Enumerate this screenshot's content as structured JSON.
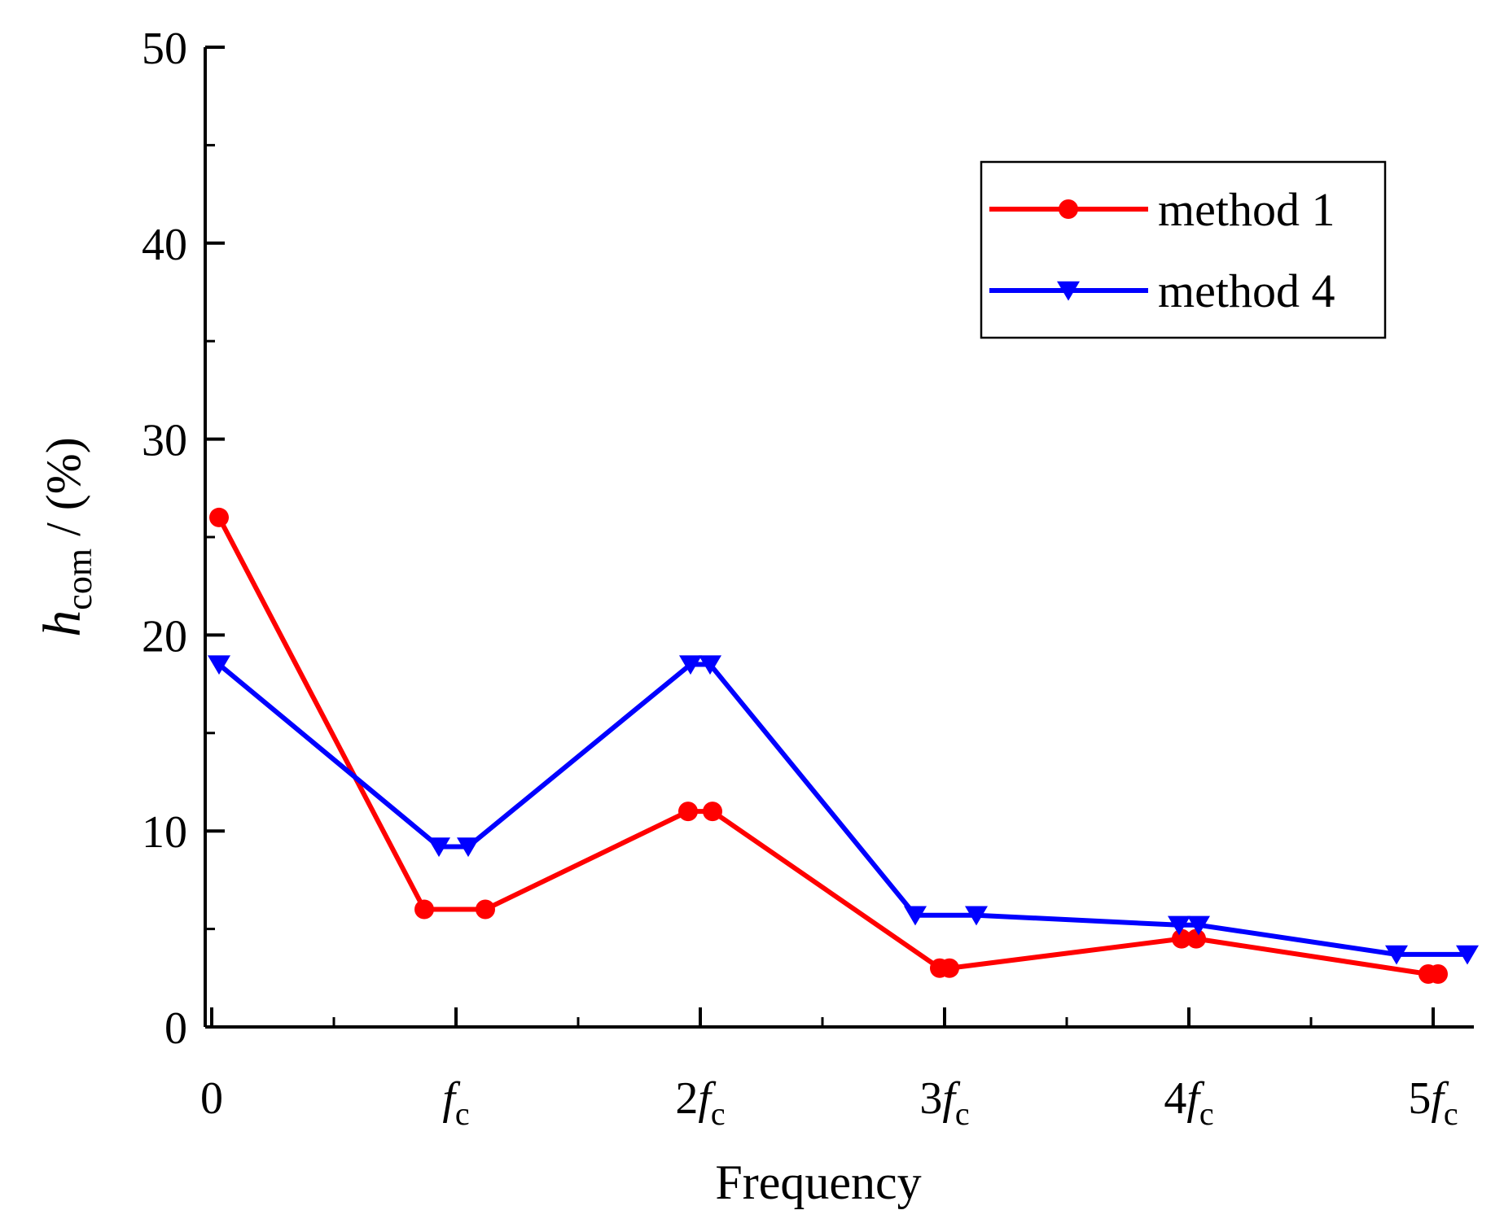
{
  "chart_data": {
    "type": "line",
    "title": "",
    "xlabel": "Frequency",
    "ylabel": {
      "main": "h",
      "sub": "com",
      "suffix": " / (%)"
    },
    "xlim": [
      0,
      5.2
    ],
    "ylim": [
      0,
      50
    ],
    "yticks": [
      0,
      10,
      20,
      30,
      40,
      50
    ],
    "xticks": [
      {
        "value": 0,
        "coef": "0",
        "f": "",
        "sub": ""
      },
      {
        "value": 1,
        "coef": "",
        "f": "f",
        "sub": "c"
      },
      {
        "value": 2,
        "coef": "2",
        "f": "f",
        "sub": "c"
      },
      {
        "value": 3,
        "coef": "3",
        "f": "f",
        "sub": "c"
      },
      {
        "value": 4,
        "coef": "4",
        "f": "f",
        "sub": "c"
      },
      {
        "value": 5,
        "coef": "5",
        "f": "f",
        "sub": "c"
      }
    ],
    "legend": {
      "position": "top-right"
    },
    "series": [
      {
        "name": "method 1",
        "color": "#ff0000",
        "marker": "circle",
        "x": [
          0.03,
          0.87,
          1.12,
          1.95,
          2.05,
          2.98,
          3.02,
          3.97,
          4.03,
          4.98,
          5.02
        ],
        "y": [
          26.0,
          6.0,
          6.0,
          11.0,
          11.0,
          3.0,
          3.0,
          4.5,
          4.5,
          2.7,
          2.7
        ]
      },
      {
        "name": "method 4",
        "color": "#0000ff",
        "marker": "triangle-down",
        "x": [
          0.03,
          0.93,
          1.05,
          1.96,
          2.04,
          2.88,
          3.13,
          3.96,
          4.04,
          4.85,
          5.14
        ],
        "y": [
          18.5,
          9.2,
          9.2,
          18.5,
          18.5,
          5.7,
          5.7,
          5.2,
          5.2,
          3.7,
          3.7
        ]
      }
    ]
  }
}
